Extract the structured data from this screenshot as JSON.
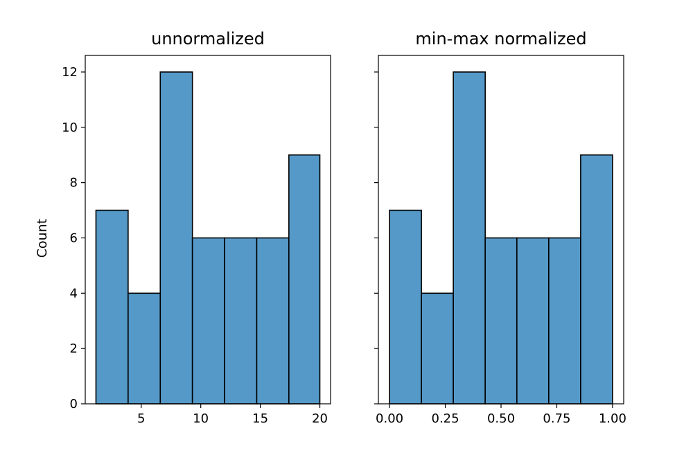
{
  "chart_data": [
    {
      "type": "bar",
      "title": "unnormalized",
      "xlabel": "",
      "ylabel": "Count",
      "bin_edges": [
        1.2,
        3.9,
        6.6,
        9.3,
        12.0,
        14.7,
        17.4,
        20.0
      ],
      "values": [
        7,
        4,
        12,
        6,
        6,
        6,
        9
      ],
      "xlim": [
        0.3,
        20.9
      ],
      "ylim": [
        0,
        12.6
      ],
      "xticks": [
        5,
        10,
        15,
        20
      ],
      "xtick_labels": [
        "5",
        "10",
        "15",
        "20"
      ],
      "yticks": [
        0,
        2,
        4,
        6,
        8,
        10,
        12
      ],
      "ytick_labels": [
        "0",
        "2",
        "4",
        "6",
        "8",
        "10",
        "12"
      ],
      "bar_color": "#5599c8",
      "edge_color": "#000000",
      "grid": false
    },
    {
      "type": "bar",
      "title": "min-max normalized",
      "xlabel": "",
      "ylabel": "",
      "bin_edges": [
        0.0,
        0.143,
        0.286,
        0.429,
        0.571,
        0.714,
        0.857,
        1.0
      ],
      "values": [
        7,
        4,
        12,
        6,
        6,
        6,
        9
      ],
      "xlim": [
        -0.05,
        1.05
      ],
      "ylim": [
        0,
        12.6
      ],
      "xticks": [
        0.0,
        0.25,
        0.5,
        0.75,
        1.0
      ],
      "xtick_labels": [
        "0.00",
        "0.25",
        "0.50",
        "0.75",
        "1.00"
      ],
      "yticks": [
        0,
        2,
        4,
        6,
        8,
        10,
        12
      ],
      "ytick_labels": [],
      "bar_color": "#5599c8",
      "edge_color": "#000000",
      "grid": false
    }
  ]
}
